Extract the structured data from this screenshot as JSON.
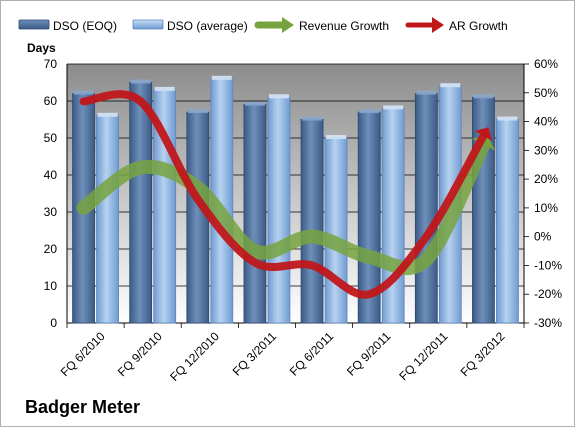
{
  "chart_data": {
    "type": "bar",
    "categories": [
      "FQ 6/2010",
      "FQ 9/2010",
      "FQ 12/2010",
      "FQ 3/2011",
      "FQ 6/2011",
      "FQ 9/2011",
      "FQ 12/2011",
      "FQ 3/2012"
    ],
    "series": [
      {
        "name": "DSO (EOQ)",
        "type": "bar",
        "axis": "left",
        "color": "#4f6f99",
        "values": [
          62,
          65,
          57,
          59,
          55,
          57,
          62,
          61
        ]
      },
      {
        "name": "DSO (average)",
        "type": "bar",
        "axis": "left",
        "color": "#8db3e2",
        "values": [
          56,
          63,
          66,
          61,
          50,
          58,
          64,
          55
        ]
      },
      {
        "name": "Revenue Growth",
        "type": "line",
        "axis": "right",
        "color": "#77a33f",
        "values": [
          0.1,
          0.24,
          0.17,
          -0.05,
          0.0,
          -0.07,
          -0.08,
          0.32
        ]
      },
      {
        "name": "AR Growth",
        "type": "line",
        "axis": "right",
        "color": "#c0171a",
        "values": [
          0.47,
          0.47,
          0.13,
          -0.09,
          -0.1,
          -0.2,
          0.0,
          0.35
        ]
      }
    ],
    "ylabel": "Days",
    "ylim": [
      0,
      70
    ],
    "yticks": [
      0,
      10,
      20,
      30,
      40,
      50,
      60,
      70
    ],
    "y2lim": [
      -0.3,
      0.6
    ],
    "y2ticks": [
      "-30%",
      "-20%",
      "-10%",
      "0%",
      "10%",
      "20%",
      "30%",
      "40%",
      "50%",
      "60%"
    ],
    "grid": true,
    "legend": "top"
  },
  "footer": {
    "company": "Badger Meter"
  }
}
